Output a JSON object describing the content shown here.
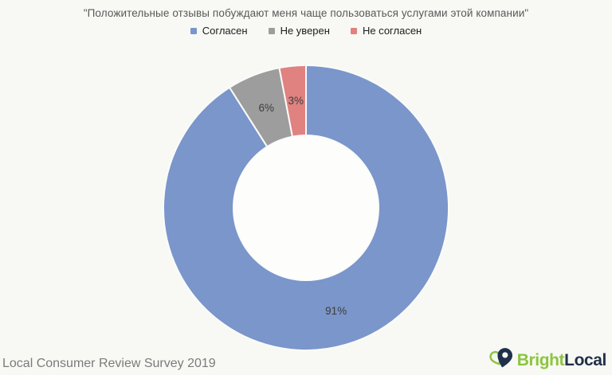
{
  "background": "#F8F8F5",
  "chart_data": {
    "type": "pie",
    "subtype": "donut",
    "title": "\"Положительные отзывы побуждают меня чаще пользоваться услугами этой компании\"",
    "categories": [
      "Согласен",
      "Не уверен",
      "Не согласен"
    ],
    "values": [
      91,
      6,
      3
    ],
    "data_labels": [
      "91%",
      "6%",
      "3%"
    ],
    "colors": [
      "#7A96CB",
      "#9D9D9D",
      "#E08280"
    ],
    "start_angle_deg": 0,
    "direction": "clockwise",
    "donut_hole_ratio": 0.51,
    "legend_position": "top",
    "label_color": "#3D3D3D",
    "separator_color": "#FBFBF9",
    "hole_color": "#FDFDFC"
  },
  "footer": {
    "source": "Local Consumer Review Survey 2019"
  },
  "logo": {
    "text_bright": "Bright",
    "text_local": "Local",
    "color_bright": "#8BC53F",
    "color_local": "#21304A"
  }
}
